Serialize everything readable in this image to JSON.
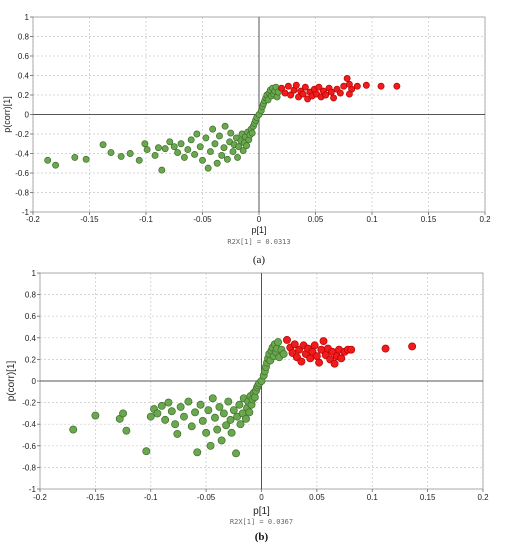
{
  "chart_data": [
    {
      "type": "scatter",
      "panel_label": "(a)",
      "xlabel": "p[1]",
      "ylabel": "p(corr)[1]",
      "note": "R2X[1] = 0.0313",
      "xlim": [
        -0.2,
        0.2
      ],
      "ylim": [
        -1,
        1
      ],
      "xticks": [
        -0.2,
        -0.15,
        -0.1,
        -0.05,
        0,
        0.05,
        0.1,
        0.15,
        0.2
      ],
      "yticks": [
        1,
        0.8,
        0.6,
        0.4,
        0.2,
        0,
        -0.2,
        -0.4,
        -0.6,
        -0.8,
        -1
      ],
      "xtick_labels": [
        "-0.2",
        "-0.15",
        "-0.1",
        "-0.05",
        "0",
        "0.05",
        "0.1",
        "0.15",
        "0.2"
      ],
      "ytick_labels": [
        "1",
        "0.8",
        "0.6",
        "0.4",
        "0.2",
        "0",
        "-0.2",
        "-0.4",
        "-0.6",
        "-0.8",
        "-1"
      ],
      "grid": true,
      "colors": {
        "green": "#6aa84f",
        "green_edge": "#3f6e2a",
        "red": "#ee1c1c",
        "red_edge": "#b80000"
      },
      "series": [
        {
          "color": "green",
          "points": [
            [
              -0.187,
              -0.47
            ],
            [
              -0.18,
              -0.52
            ],
            [
              -0.163,
              -0.44
            ],
            [
              -0.153,
              -0.46
            ],
            [
              -0.138,
              -0.31
            ],
            [
              -0.131,
              -0.39
            ],
            [
              -0.122,
              -0.43
            ],
            [
              -0.114,
              -0.4
            ],
            [
              -0.106,
              -0.47
            ],
            [
              -0.101,
              -0.3
            ],
            [
              -0.099,
              -0.36
            ],
            [
              -0.092,
              -0.42
            ],
            [
              -0.089,
              -0.34
            ],
            [
              -0.086,
              -0.57
            ],
            [
              -0.083,
              -0.35
            ],
            [
              -0.079,
              -0.28
            ],
            [
              -0.075,
              -0.33
            ],
            [
              -0.072,
              -0.39
            ],
            [
              -0.069,
              -0.3
            ],
            [
              -0.066,
              -0.44
            ],
            [
              -0.063,
              -0.36
            ],
            [
              -0.06,
              -0.26
            ],
            [
              -0.057,
              -0.41
            ],
            [
              -0.055,
              -0.2
            ],
            [
              -0.052,
              -0.33
            ],
            [
              -0.05,
              -0.47
            ],
            [
              -0.047,
              -0.24
            ],
            [
              -0.045,
              -0.55
            ],
            [
              -0.043,
              -0.38
            ],
            [
              -0.041,
              -0.15
            ],
            [
              -0.039,
              -0.3
            ],
            [
              -0.037,
              -0.5
            ],
            [
              -0.035,
              -0.22
            ],
            [
              -0.033,
              -0.42
            ],
            [
              -0.031,
              -0.34
            ],
            [
              -0.03,
              -0.12
            ],
            [
              -0.028,
              -0.46
            ],
            [
              -0.026,
              -0.28
            ],
            [
              -0.025,
              -0.19
            ],
            [
              -0.023,
              -0.38
            ],
            [
              -0.022,
              -0.31
            ],
            [
              -0.02,
              -0.24
            ],
            [
              -0.019,
              -0.44
            ],
            [
              -0.018,
              -0.33
            ],
            [
              -0.016,
              -0.27
            ],
            [
              -0.015,
              -0.2
            ],
            [
              -0.014,
              -0.37
            ],
            [
              -0.013,
              -0.29
            ],
            [
              -0.012,
              -0.23
            ],
            [
              -0.011,
              -0.32
            ],
            [
              -0.01,
              -0.18
            ],
            [
              -0.009,
              -0.26
            ],
            [
              -0.008,
              -0.21
            ],
            [
              -0.007,
              -0.15
            ],
            [
              -0.006,
              -0.19
            ],
            [
              -0.005,
              -0.12
            ],
            [
              -0.004,
              -0.09
            ],
            [
              -0.003,
              -0.06
            ],
            [
              -0.002,
              -0.03
            ],
            [
              0.0,
              0.0
            ],
            [
              0.002,
              0.04
            ],
            [
              0.003,
              0.08
            ],
            [
              0.004,
              0.11
            ],
            [
              0.005,
              0.14
            ],
            [
              0.006,
              0.17
            ],
            [
              0.007,
              0.2
            ],
            [
              0.008,
              0.15
            ],
            [
              0.009,
              0.22
            ],
            [
              0.01,
              0.25
            ],
            [
              0.011,
              0.19
            ],
            [
              0.012,
              0.27
            ],
            [
              0.013,
              0.21
            ],
            [
              0.014,
              0.24
            ],
            [
              0.015,
              0.28
            ],
            [
              0.016,
              0.18
            ],
            [
              0.017,
              0.23
            ]
          ]
        },
        {
          "color": "red",
          "points": [
            [
              0.02,
              0.27
            ],
            [
              0.023,
              0.22
            ],
            [
              0.026,
              0.29
            ],
            [
              0.028,
              0.2
            ],
            [
              0.031,
              0.25
            ],
            [
              0.033,
              0.3
            ],
            [
              0.035,
              0.18
            ],
            [
              0.037,
              0.24
            ],
            [
              0.039,
              0.21
            ],
            [
              0.041,
              0.28
            ],
            [
              0.043,
              0.16
            ],
            [
              0.045,
              0.23
            ],
            [
              0.047,
              0.19
            ],
            [
              0.049,
              0.26
            ],
            [
              0.051,
              0.21
            ],
            [
              0.053,
              0.28
            ],
            [
              0.055,
              0.18
            ],
            [
              0.057,
              0.24
            ],
            [
              0.059,
              0.2
            ],
            [
              0.062,
              0.27
            ],
            [
              0.064,
              0.23
            ],
            [
              0.066,
              0.17
            ],
            [
              0.069,
              0.26
            ],
            [
              0.072,
              0.22
            ],
            [
              0.075,
              0.29
            ],
            [
              0.078,
              0.37
            ],
            [
              0.08,
              0.31
            ],
            [
              0.082,
              0.26
            ],
            [
              0.08,
              0.21
            ],
            [
              0.087,
              0.29
            ],
            [
              0.095,
              0.3
            ],
            [
              0.108,
              0.29
            ],
            [
              0.122,
              0.29
            ]
          ]
        }
      ]
    },
    {
      "type": "scatter",
      "panel_label": "(b)",
      "xlabel": "p[1]",
      "ylabel": "p(corr)[1]",
      "note": "R2X[1] = 0.0367",
      "xlim": [
        -0.2,
        0.2
      ],
      "ylim": [
        -1,
        1
      ],
      "xticks": [
        -0.2,
        -0.15,
        -0.1,
        -0.05,
        0,
        0.05,
        0.1,
        0.15,
        0.2
      ],
      "yticks": [
        1,
        0.8,
        0.6,
        0.4,
        0.2,
        0,
        -0.2,
        -0.4,
        -0.6,
        -0.8,
        -1
      ],
      "xtick_labels": [
        "-0.2",
        "-0.15",
        "-0.1",
        "-0.05",
        "0",
        "0.05",
        "0.1",
        "0.15",
        "0.2"
      ],
      "ytick_labels": [
        "1",
        "0.8",
        "0.6",
        "0.4",
        "0.2",
        "0",
        "-0.2",
        "-0.4",
        "-0.6",
        "-0.8",
        "-1"
      ],
      "grid": true,
      "colors": {
        "green": "#6aa84f",
        "green_edge": "#3f6e2a",
        "red": "#ee1c1c",
        "red_edge": "#b80000"
      },
      "series": [
        {
          "color": "green",
          "points": [
            [
              -0.17,
              -0.45
            ],
            [
              -0.15,
              -0.32
            ],
            [
              -0.128,
              -0.35
            ],
            [
              -0.125,
              -0.3
            ],
            [
              -0.122,
              -0.46
            ],
            [
              -0.104,
              -0.65
            ],
            [
              -0.1,
              -0.33
            ],
            [
              -0.097,
              -0.26
            ],
            [
              -0.094,
              -0.3
            ],
            [
              -0.09,
              -0.23
            ],
            [
              -0.087,
              -0.36
            ],
            [
              -0.084,
              -0.2
            ],
            [
              -0.081,
              -0.28
            ],
            [
              -0.078,
              -0.4
            ],
            [
              -0.076,
              -0.49
            ],
            [
              -0.073,
              -0.24
            ],
            [
              -0.07,
              -0.33
            ],
            [
              -0.066,
              -0.19
            ],
            [
              -0.063,
              -0.42
            ],
            [
              -0.06,
              -0.29
            ],
            [
              -0.058,
              -0.66
            ],
            [
              -0.055,
              -0.22
            ],
            [
              -0.053,
              -0.37
            ],
            [
              -0.05,
              -0.48
            ],
            [
              -0.048,
              -0.27
            ],
            [
              -0.046,
              -0.6
            ],
            [
              -0.044,
              -0.16
            ],
            [
              -0.042,
              -0.34
            ],
            [
              -0.04,
              -0.45
            ],
            [
              -0.038,
              -0.24
            ],
            [
              -0.036,
              -0.55
            ],
            [
              -0.034,
              -0.3
            ],
            [
              -0.032,
              -0.41
            ],
            [
              -0.03,
              -0.19
            ],
            [
              -0.028,
              -0.36
            ],
            [
              -0.027,
              -0.48
            ],
            [
              -0.025,
              -0.27
            ],
            [
              -0.023,
              -0.67
            ],
            [
              -0.022,
              -0.33
            ],
            [
              -0.02,
              -0.22
            ],
            [
              -0.019,
              -0.4
            ],
            [
              -0.017,
              -0.3
            ],
            [
              -0.016,
              -0.16
            ],
            [
              -0.014,
              -0.35
            ],
            [
              -0.013,
              -0.25
            ],
            [
              -0.012,
              -0.19
            ],
            [
              -0.011,
              -0.29
            ],
            [
              -0.01,
              -0.14
            ],
            [
              -0.009,
              -0.22
            ],
            [
              -0.008,
              -0.17
            ],
            [
              -0.007,
              -0.11
            ],
            [
              -0.006,
              -0.15
            ],
            [
              -0.005,
              -0.09
            ],
            [
              -0.004,
              -0.06
            ],
            [
              -0.003,
              -0.04
            ],
            [
              -0.002,
              -0.02
            ],
            [
              0.0,
              0.0
            ],
            [
              0.002,
              0.05
            ],
            [
              0.003,
              0.09
            ],
            [
              0.004,
              0.13
            ],
            [
              0.005,
              0.17
            ],
            [
              0.006,
              0.21
            ],
            [
              0.007,
              0.25
            ],
            [
              0.008,
              0.19
            ],
            [
              0.009,
              0.28
            ],
            [
              0.01,
              0.31
            ],
            [
              0.011,
              0.23
            ],
            [
              0.012,
              0.34
            ],
            [
              0.013,
              0.27
            ],
            [
              0.014,
              0.3
            ],
            [
              0.015,
              0.36
            ],
            [
              0.016,
              0.22
            ],
            [
              0.018,
              0.29
            ],
            [
              0.02,
              0.25
            ]
          ]
        },
        {
          "color": "red",
          "points": [
            [
              0.023,
              0.38
            ],
            [
              0.026,
              0.31
            ],
            [
              0.028,
              0.26
            ],
            [
              0.03,
              0.34
            ],
            [
              0.032,
              0.22
            ],
            [
              0.034,
              0.29
            ],
            [
              0.036,
              0.18
            ],
            [
              0.038,
              0.33
            ],
            [
              0.04,
              0.25
            ],
            [
              0.042,
              0.3
            ],
            [
              0.044,
              0.21
            ],
            [
              0.046,
              0.27
            ],
            [
              0.048,
              0.33
            ],
            [
              0.05,
              0.23
            ],
            [
              0.052,
              0.17
            ],
            [
              0.054,
              0.29
            ],
            [
              0.056,
              0.37
            ],
            [
              0.058,
              0.24
            ],
            [
              0.06,
              0.3
            ],
            [
              0.062,
              0.2
            ],
            [
              0.064,
              0.27
            ],
            [
              0.066,
              0.16
            ],
            [
              0.068,
              0.23
            ],
            [
              0.07,
              0.29
            ],
            [
              0.072,
              0.21
            ],
            [
              0.075,
              0.27
            ],
            [
              0.078,
              0.29
            ],
            [
              0.081,
              0.29
            ],
            [
              0.112,
              0.3
            ],
            [
              0.136,
              0.32
            ]
          ]
        }
      ]
    }
  ]
}
